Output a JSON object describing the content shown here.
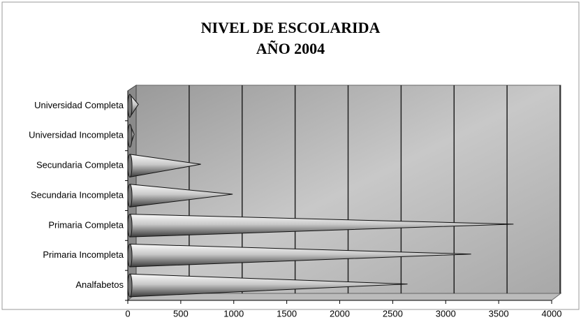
{
  "chart_data": {
    "type": "bar",
    "orientation": "horizontal",
    "title": "NIVEL DE ESCOLARIDA",
    "subtitle": "AÑO 2004",
    "categories": [
      "Analfabetos",
      "Primaria Incompleta",
      "Primaria Completa",
      "Secundaria Incompleta",
      "Secundaria Completa",
      "Universidad Incompleta",
      "Universidad Completa"
    ],
    "values": [
      2600,
      3200,
      3600,
      950,
      650,
      20,
      60
    ],
    "color": "#a0a0a0",
    "xlim": [
      0,
      4000
    ],
    "xticks": [
      0,
      500,
      1000,
      1500,
      2000,
      2500,
      3000,
      3500,
      4000
    ],
    "grid": true
  }
}
